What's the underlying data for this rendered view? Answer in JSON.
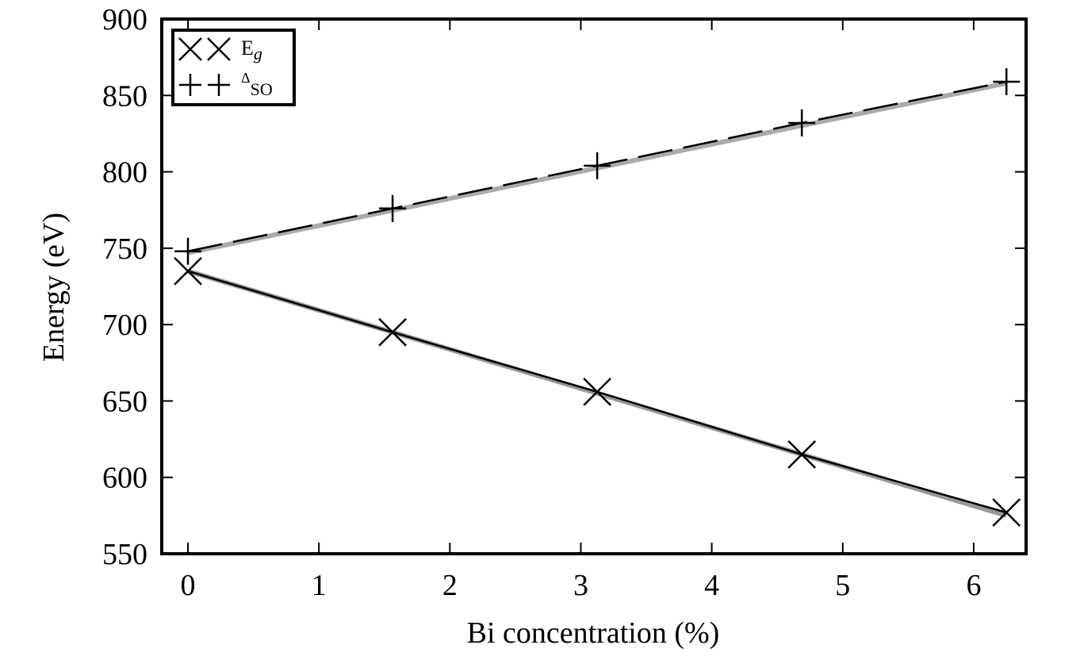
{
  "chart_data": {
    "type": "line",
    "title": "",
    "xlabel": "Bi concentration (%)",
    "ylabel": "Energy (eV)",
    "xlim": [
      -0.2,
      6.4
    ],
    "ylim": [
      550,
      900
    ],
    "xticks": [
      0,
      1,
      2,
      3,
      4,
      5,
      6
    ],
    "yticks": [
      550,
      600,
      650,
      700,
      750,
      800,
      850,
      900
    ],
    "grid": false,
    "legend_position": "top-left",
    "series": [
      {
        "name": "E",
        "name_sub": "g",
        "marker": "cross",
        "line_style": "solid",
        "color": "#000000",
        "fit_color": "#999999",
        "x": [
          0,
          1.5625,
          3.125,
          4.6875,
          6.25
        ],
        "y": [
          735,
          695,
          656,
          615,
          577
        ],
        "fit": [
          735,
          575
        ]
      },
      {
        "name": "Δ",
        "name_sub": "SO",
        "marker": "plus",
        "line_style": "dashed",
        "color": "#000000",
        "fit_color": "#aaaaaa",
        "x": [
          0,
          1.5625,
          3.125,
          4.6875,
          6.25
        ],
        "y": [
          748,
          776,
          804,
          832,
          859
        ],
        "fit": [
          747,
          858
        ]
      }
    ]
  }
}
